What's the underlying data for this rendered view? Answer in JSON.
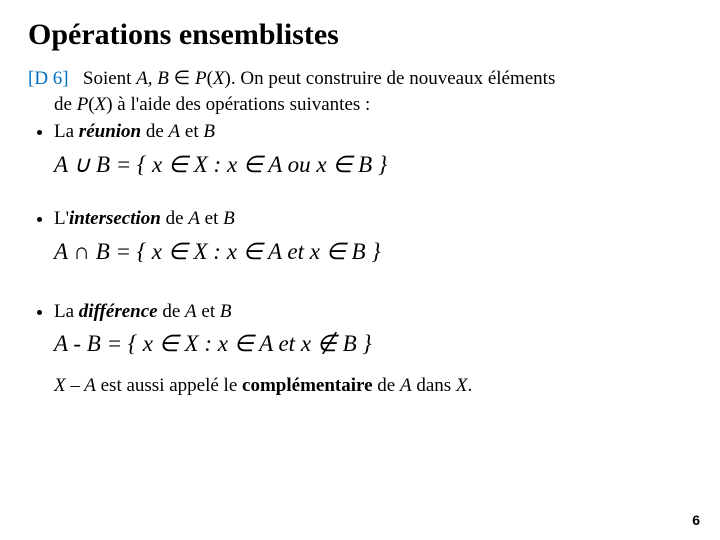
{
  "title": "Opérations ensemblistes",
  "ref": "[D 6]",
  "intro_a": "Soient ",
  "intro_ab": "A, B",
  "intro_b": " ∈ ",
  "intro_px": "P",
  "intro_c": "(",
  "intro_x": "X",
  "intro_d": "). On peut construire de nouveaux éléments",
  "cont_a": "de ",
  "cont_px": "P",
  "cont_b": "(",
  "cont_x": "X",
  "cont_c": ") à l'aide des opérations suivantes :",
  "bullet1_a": "La ",
  "bullet1_b": "réunion",
  "bullet1_c": " de ",
  "bullet1_d": "A",
  "bullet1_e": " et ",
  "bullet1_f": "B",
  "formula1": "A ∪ B = { x ∈ X : x ∈ A  ou  x ∈ B }",
  "bullet2_a": "L'",
  "bullet2_b": "intersection",
  "bullet2_c": " de ",
  "bullet2_d": "A",
  "bullet2_e": " et ",
  "bullet2_f": "B",
  "formula2": "A ∩ B = { x ∈ X : x ∈ A  et  x ∈ B }",
  "bullet3_a": "La ",
  "bullet3_b": "différence",
  "bullet3_c": " de ",
  "bullet3_d": "A",
  "bullet3_e": " et ",
  "bullet3_f": "B",
  "formula3": "A - B = { x ∈ X : x ∈ A  et x ∉ B }",
  "note_a": "X – A",
  "note_b": " est aussi appelé le ",
  "note_c": "complémentaire",
  "note_d": " de ",
  "note_e": "A",
  "note_f": " dans ",
  "note_g": "X",
  "note_h": ".",
  "page": "6"
}
